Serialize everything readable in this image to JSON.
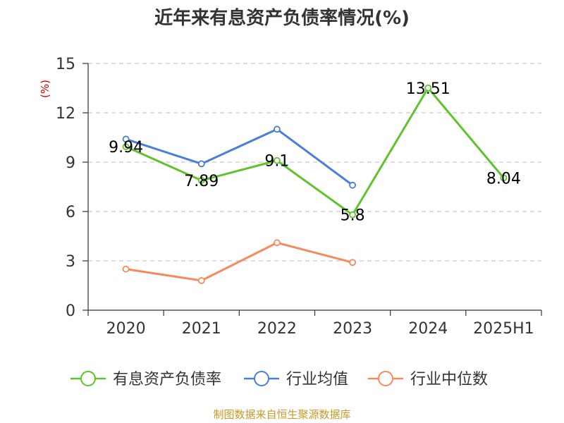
{
  "chart_data": {
    "type": "line",
    "title": "近年来有息资产负债率情况(%)",
    "ylabel": "(%)",
    "xlabel": "",
    "categories": [
      "2020",
      "2021",
      "2022",
      "2023",
      "2024",
      "2025H1"
    ],
    "ylim": [
      0,
      15
    ],
    "yticks": [
      0,
      3,
      6,
      9,
      12,
      15
    ],
    "grid": true,
    "legend_position": "bottom",
    "series": [
      {
        "name": "有息资产负债率",
        "color": "#5fc32b",
        "values": [
          9.94,
          7.89,
          9.1,
          5.8,
          13.51,
          8.04
        ],
        "labels": [
          "9.94",
          "7.89",
          "9.1",
          "5.8",
          "13.51",
          "8.04"
        ]
      },
      {
        "name": "行业均值",
        "color": "#4a7fd9",
        "values": [
          10.4,
          8.9,
          11.0,
          7.6,
          null,
          null
        ]
      },
      {
        "name": "行业中位数",
        "color": "#f7895e",
        "values": [
          2.5,
          1.8,
          4.1,
          2.9,
          null,
          null
        ]
      }
    ]
  },
  "source": "制图数据来自恒生聚源数据库"
}
